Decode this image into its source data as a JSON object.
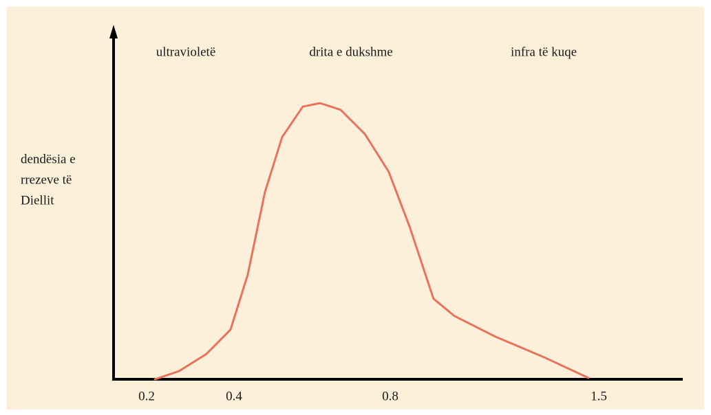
{
  "chart_data": {
    "type": "line",
    "annotations": [
      "ultravioletë",
      "drita e dukshme",
      "infra të kuqe"
    ],
    "ylabel": [
      "dendësia e",
      "rrezeve të",
      "Diellit"
    ],
    "xlim": [
      0.1,
      1.8
    ],
    "xticks": [
      0.2,
      0.4,
      0.8,
      1.5
    ],
    "ylim": [
      0,
      100
    ],
    "series": [
      {
        "color": "#e8735a",
        "x": [
          0.219,
          0.274,
          0.337,
          0.392,
          0.435,
          0.479,
          0.523,
          0.576,
          0.62,
          0.673,
          0.735,
          0.796,
          0.865,
          0.945,
          1.015,
          1.153,
          1.315,
          1.465
        ],
        "values": [
          0,
          2.3,
          7.2,
          14.1,
          29.7,
          53.1,
          68.8,
          77.5,
          78.5,
          76.6,
          69.7,
          59,
          43.4,
          22.9,
          18,
          12.1,
          6.3,
          0.4
        ]
      }
    ]
  }
}
